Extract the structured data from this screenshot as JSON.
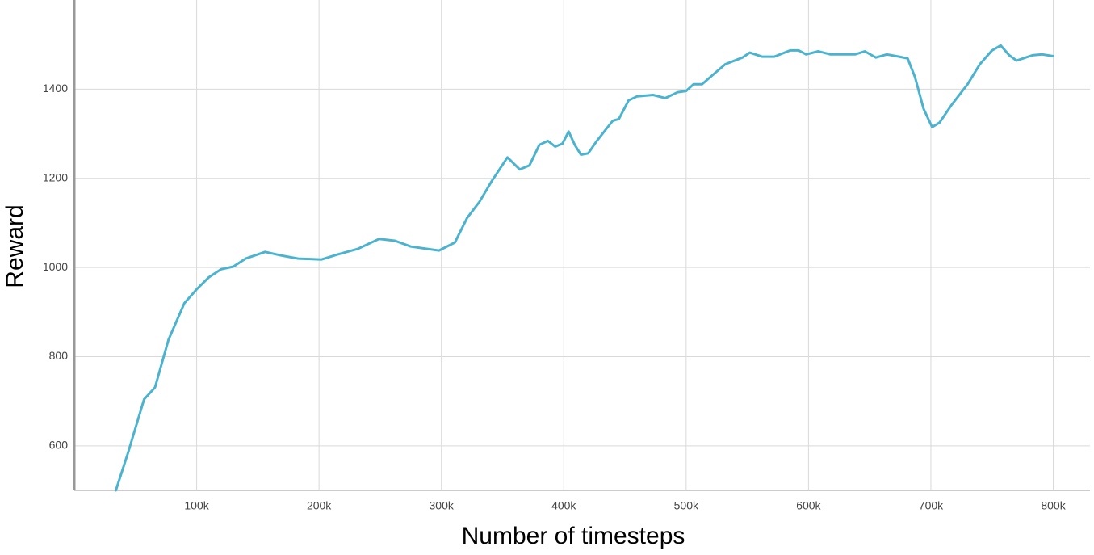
{
  "chart_data": {
    "type": "line",
    "xlabel": "Number of timesteps",
    "ylabel": "Reward",
    "xlim": [
      0,
      830000
    ],
    "ylim": [
      500,
      1600
    ],
    "xticks": [
      {
        "value": 100000,
        "label": "100k"
      },
      {
        "value": 200000,
        "label": "200k"
      },
      {
        "value": 300000,
        "label": "300k"
      },
      {
        "value": 400000,
        "label": "400k"
      },
      {
        "value": 500000,
        "label": "500k"
      },
      {
        "value": 600000,
        "label": "600k"
      },
      {
        "value": 700000,
        "label": "700k"
      },
      {
        "value": 800000,
        "label": "800k"
      }
    ],
    "yticks": [
      600,
      800,
      1000,
      1200,
      1400
    ],
    "grid": true,
    "series": [
      {
        "color": "#4cb3cf",
        "x": [
          34000,
          44000,
          57000,
          66000,
          77000,
          90000,
          100000,
          110000,
          120000,
          130000,
          140000,
          156000,
          169000,
          183000,
          202000,
          215000,
          232000,
          249000,
          262000,
          275000,
          298000,
          311000,
          321000,
          331000,
          341000,
          354000,
          364000,
          372000,
          380000,
          387000,
          393000,
          399000,
          404000,
          409000,
          414000,
          420000,
          427000,
          440000,
          445000,
          453000,
          460000,
          473000,
          483000,
          493000,
          500000,
          506000,
          513000,
          523000,
          532000,
          546000,
          552000,
          562000,
          572000,
          585000,
          592000,
          598000,
          608000,
          618000,
          638000,
          646000,
          655000,
          664000,
          674000,
          681000,
          687000,
          694000,
          701000,
          707000,
          717000,
          730000,
          740000,
          750000,
          757000,
          764000,
          770000,
          783000,
          791000,
          800000
        ],
        "values": [
          500,
          585,
          704,
          731,
          838,
          920,
          951,
          978,
          996,
          1002,
          1020,
          1035,
          1027,
          1020,
          1018,
          1029,
          1042,
          1064,
          1060,
          1047,
          1038,
          1056,
          1111,
          1147,
          1193,
          1247,
          1220,
          1229,
          1275,
          1284,
          1271,
          1278,
          1305,
          1275,
          1253,
          1256,
          1284,
          1329,
          1333,
          1375,
          1384,
          1387,
          1380,
          1393,
          1396,
          1411,
          1411,
          1435,
          1456,
          1471,
          1482,
          1473,
          1473,
          1487,
          1487,
          1478,
          1485,
          1478,
          1478,
          1485,
          1471,
          1478,
          1473,
          1469,
          1427,
          1356,
          1315,
          1325,
          1365,
          1411,
          1456,
          1487,
          1498,
          1476,
          1464,
          1476,
          1478,
          1474
        ]
      }
    ]
  }
}
